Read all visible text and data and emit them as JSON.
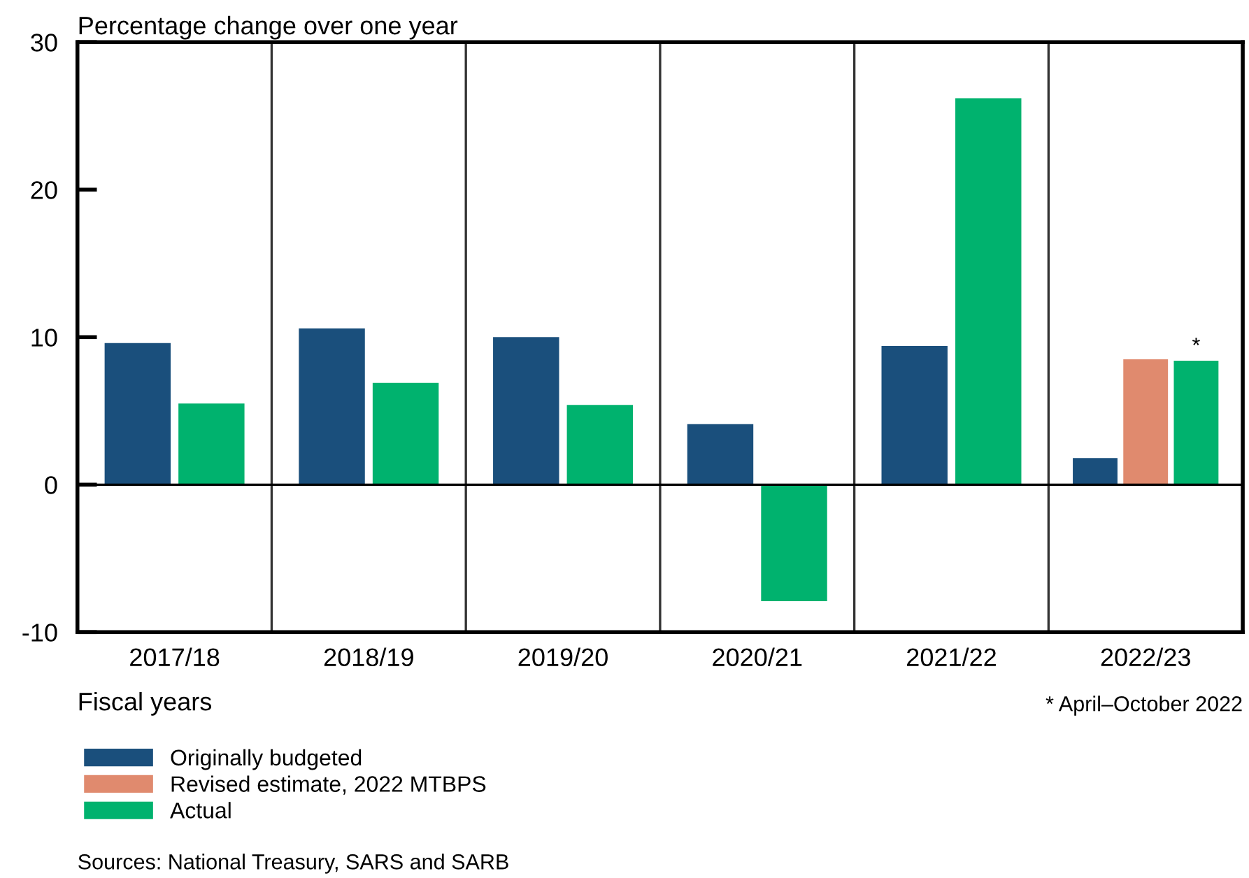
{
  "chart_data": {
    "type": "bar",
    "ylabel": "Percentage change over one year",
    "xlabel": "Fiscal years",
    "categories": [
      "2017/18",
      "2018/19",
      "2019/20",
      "2020/21",
      "2021/22",
      "2022/23"
    ],
    "series": [
      {
        "name": "Originally budgeted",
        "color": "#1a4f7c",
        "values": [
          9.6,
          10.6,
          10.0,
          4.1,
          9.4,
          1.8
        ]
      },
      {
        "name": "Revised estimate, 2022 MTBPS",
        "color": "#e08a6e",
        "values": [
          null,
          null,
          null,
          null,
          null,
          8.5
        ]
      },
      {
        "name": "Actual",
        "color": "#00b26e",
        "values": [
          5.5,
          6.9,
          5.4,
          -7.9,
          26.2,
          8.4
        ]
      }
    ],
    "ylim": [
      -10,
      30
    ],
    "yticks": [
      -10,
      0,
      10,
      20,
      30
    ],
    "grid": "x",
    "legend": "bottom",
    "ref_lines": [
      {
        "axis": "y",
        "value": 0
      }
    ],
    "annotations": [
      {
        "text": "*",
        "x": "2022/23",
        "y": 8.4
      },
      "* April–October 2022",
      "Sources: National Treasury, SARS and SARB"
    ]
  }
}
